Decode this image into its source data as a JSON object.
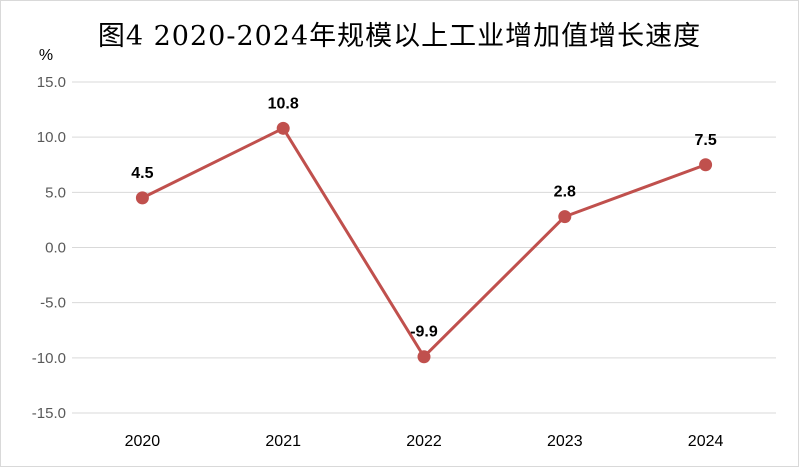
{
  "chart_data": {
    "type": "line",
    "title": "图4   2020-2024年规模以上工业增加值增长速度",
    "y_unit": "%",
    "categories": [
      "2020",
      "2021",
      "2022",
      "2023",
      "2024"
    ],
    "series": [
      {
        "values": [
          4.5,
          10.8,
          -9.9,
          2.8,
          7.5
        ],
        "color": "#c0504d"
      }
    ],
    "data_labels": [
      "4.5",
      "10.8",
      "-9.9",
      "2.8",
      "7.5"
    ],
    "ylim": [
      -15,
      15
    ],
    "yticks": [
      "15.0",
      "10.0",
      "5.0",
      "0.0",
      "-5.0",
      "-10.0",
      "-15.0"
    ],
    "grid": true,
    "legend": "none"
  }
}
